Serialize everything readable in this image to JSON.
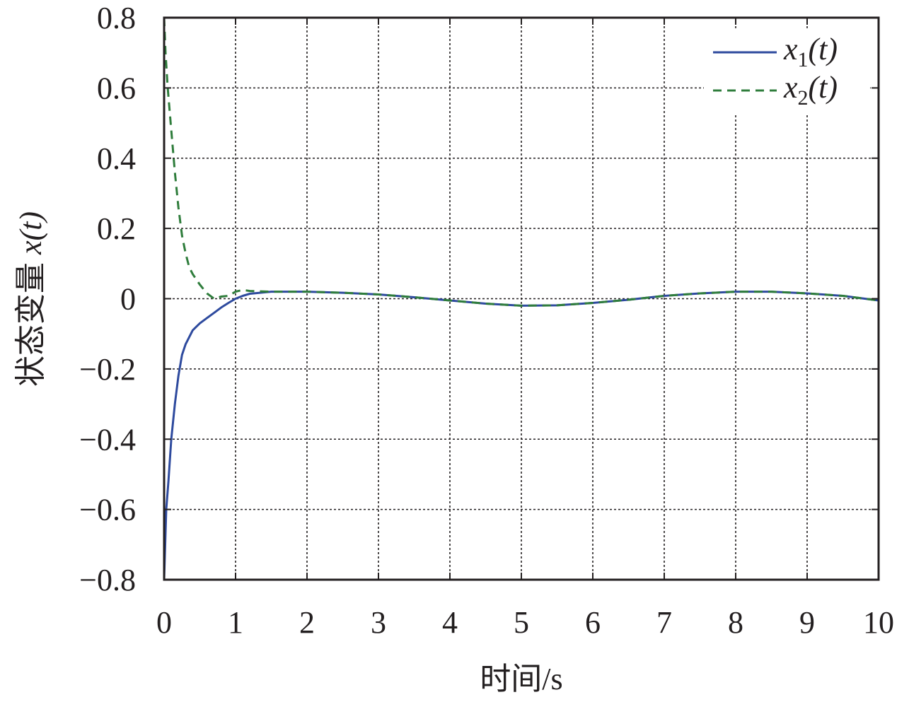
{
  "chart_data": {
    "type": "line",
    "xlabel": "时间/s",
    "ylabel_prefix": "状态变量 ",
    "ylabel_var": "x",
    "ylabel_arg": "(t)",
    "xlim": [
      0,
      10
    ],
    "ylim": [
      -0.8,
      0.8
    ],
    "xticks": [
      0,
      1,
      2,
      3,
      4,
      5,
      6,
      7,
      8,
      9,
      10
    ],
    "yticks": [
      -0.8,
      -0.6,
      -0.4,
      -0.2,
      0,
      0.2,
      0.4,
      0.6,
      0.8
    ],
    "xtick_labels": [
      "0",
      "1",
      "2",
      "3",
      "4",
      "5",
      "6",
      "7",
      "8",
      "9",
      "10"
    ],
    "ytick_labels": [
      "−0.8",
      "−0.6",
      "−0.4",
      "−0.2",
      "0",
      "0.2",
      "0.4",
      "0.6",
      "0.8"
    ],
    "grid": true,
    "legend_position": "top-right",
    "series": [
      {
        "name_var": "x",
        "name_sub": "1",
        "name_arg": "(t)",
        "color": "#2e4a9e",
        "dash": "solid",
        "x": [
          0,
          0.03,
          0.06,
          0.1,
          0.15,
          0.2,
          0.25,
          0.3,
          0.4,
          0.5,
          0.6,
          0.7,
          0.8,
          0.9,
          1.0,
          1.1,
          1.2,
          1.5,
          2.0,
          2.5,
          3.0,
          3.5,
          4.0,
          4.5,
          5.0,
          5.5,
          6.0,
          6.5,
          7.0,
          7.5,
          8.0,
          8.5,
          9.0,
          9.5,
          10.0
        ],
        "y": [
          -0.8,
          -0.6,
          -0.52,
          -0.4,
          -0.3,
          -0.22,
          -0.16,
          -0.13,
          -0.09,
          -0.07,
          -0.055,
          -0.04,
          -0.025,
          -0.012,
          0.0,
          0.008,
          0.014,
          0.02,
          0.02,
          0.017,
          0.012,
          0.004,
          -0.005,
          -0.014,
          -0.02,
          -0.019,
          -0.012,
          -0.003,
          0.008,
          0.015,
          0.02,
          0.02,
          0.015,
          0.008,
          -0.005
        ]
      },
      {
        "name_var": "x",
        "name_sub": "2",
        "name_arg": "(t)",
        "color": "#2f7d3c",
        "dash": "dashed",
        "x": [
          0,
          0.02,
          0.05,
          0.1,
          0.15,
          0.2,
          0.25,
          0.3,
          0.35,
          0.4,
          0.5,
          0.6,
          0.7,
          0.8,
          0.9,
          1.0,
          1.1,
          1.2,
          1.5,
          2.0,
          2.5,
          3.0,
          3.5,
          4.0,
          4.5,
          5.0,
          5.5,
          6.0,
          6.5,
          7.0,
          7.5,
          8.0,
          8.5,
          9.0,
          9.5,
          10.0
        ],
        "y": [
          0.8,
          0.7,
          0.6,
          0.48,
          0.36,
          0.26,
          0.18,
          0.13,
          0.09,
          0.07,
          0.04,
          0.015,
          0.0,
          0.006,
          0.008,
          0.02,
          0.025,
          0.022,
          0.02,
          0.02,
          0.017,
          0.012,
          0.004,
          -0.005,
          -0.014,
          -0.02,
          -0.019,
          -0.012,
          -0.003,
          0.008,
          0.015,
          0.02,
          0.02,
          0.015,
          0.008,
          -0.005
        ]
      }
    ]
  }
}
